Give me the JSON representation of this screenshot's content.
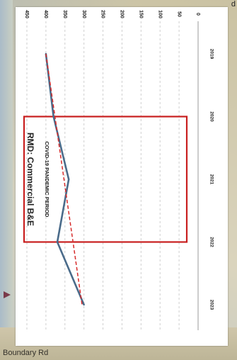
{
  "map": {
    "road_label": "Boundary Rd",
    "corner_label": "d"
  },
  "colors": {
    "series_line": "#4a6b8a",
    "trend_line": "#d62b2b",
    "highlight_box": "#c81e1e",
    "grid": "#cfcfcf",
    "text": "#222222"
  },
  "chart_data": {
    "type": "line",
    "title": "RMD: Commercial B&E",
    "annotation": "COVID-19 PANDEMIC PERIOD",
    "categories": [
      "2019",
      "2020",
      "2021",
      "2022",
      "2023"
    ],
    "series": [
      {
        "values": [
          400,
          380,
          340,
          370,
          300
        ]
      }
    ],
    "trendline": {
      "style": "dashed",
      "values": [
        400,
        376,
        352,
        328,
        305
      ]
    },
    "highlight_range": [
      "2020",
      "2022"
    ],
    "y_ticks": [
      0,
      50,
      100,
      150,
      200,
      250,
      300,
      350,
      400,
      450
    ],
    "ylim": [
      0,
      450
    ],
    "grid": true,
    "orientation": "rotated-90-clockwise"
  }
}
